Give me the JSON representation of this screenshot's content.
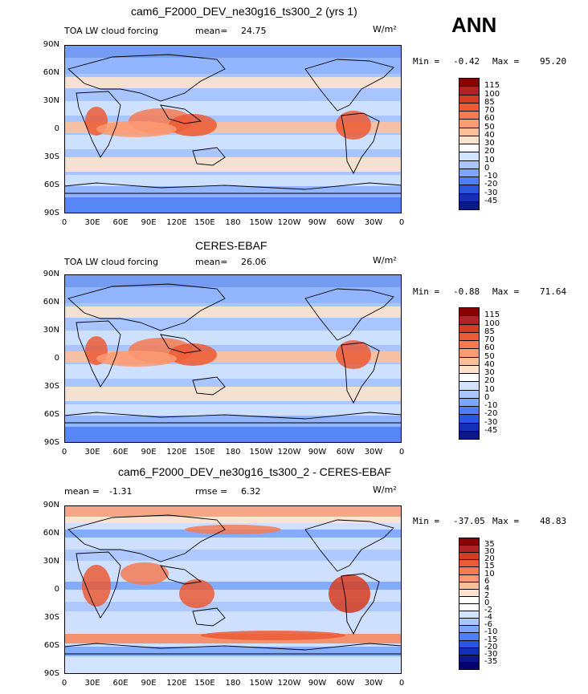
{
  "page_label": "ANN",
  "panels": [
    {
      "id": "model",
      "title": "cam6_F2000_DEV_ne30g16_ts300_2 (yrs 1)",
      "left_label": "TOA LW cloud forcing",
      "stat_label": "mean=",
      "stat_value": "24.75",
      "units": "W/m²",
      "min_label": "Min =",
      "min_value": "-0.42",
      "max_label": "Max =",
      "max_value": "95.20",
      "colorbar": {
        "labels": [
          "115",
          "100",
          "85",
          "70",
          "60",
          "50",
          "40",
          "30",
          "20",
          "10",
          "0",
          "-10",
          "-20",
          "-30",
          "-45"
        ],
        "colors": [
          "#8b0000",
          "#b22222",
          "#d63c1f",
          "#eb5b35",
          "#f57a52",
          "#fb9a73",
          "#fdbf9a",
          "#fde3cc",
          "#ffffff",
          "#d0e3ff",
          "#a8c6ff",
          "#7aa6ff",
          "#4e7ff5",
          "#2a55e0",
          "#1430b8",
          "#0a1a88"
        ]
      }
    },
    {
      "id": "obs",
      "title": "CERES-EBAF",
      "left_label": "TOA LW cloud forcing",
      "stat_label": "mean=",
      "stat_value": "26.06",
      "units": "W/m²",
      "min_label": "Min =",
      "min_value": "-0.88",
      "max_label": "Max =",
      "max_value": "71.64",
      "colorbar": {
        "labels": [
          "115",
          "100",
          "85",
          "70",
          "60",
          "50",
          "40",
          "30",
          "20",
          "10",
          "0",
          "-10",
          "-20",
          "-30",
          "-45"
        ],
        "colors": [
          "#8b0000",
          "#b22222",
          "#d63c1f",
          "#eb5b35",
          "#f57a52",
          "#fb9a73",
          "#fdbf9a",
          "#fde3cc",
          "#ffffff",
          "#d0e3ff",
          "#a8c6ff",
          "#7aa6ff",
          "#4e7ff5",
          "#2a55e0",
          "#1430b8",
          "#0a1a88"
        ]
      }
    },
    {
      "id": "diff",
      "title": "cam6_F2000_DEV_ne30g16_ts300_2 - CERES-EBAF",
      "left_label": "mean =",
      "left_value": "-1.31",
      "stat_label": "rmse =",
      "stat_value": "6.32",
      "units": "W/m²",
      "min_label": "Min =",
      "min_value": "-37.05",
      "max_label": "Max =",
      "max_value": "48.83",
      "colorbar": {
        "labels": [
          "35",
          "30",
          "20",
          "15",
          "10",
          "6",
          "4",
          "2",
          "0",
          "-2",
          "-4",
          "-6",
          "-10",
          "-15",
          "-20",
          "-30",
          "-35"
        ],
        "colors": [
          "#8b0000",
          "#b22222",
          "#d63c1f",
          "#eb5b35",
          "#f57a52",
          "#fb9a73",
          "#fdbf9a",
          "#fde3cc",
          "#ffffff",
          "#ffffff",
          "#d0e3ff",
          "#a8c6ff",
          "#7aa6ff",
          "#4e7ff5",
          "#2a55e0",
          "#1430b8",
          "#0a1a88",
          "#000070"
        ]
      }
    }
  ],
  "lat_ticks": [
    "90N",
    "60N",
    "30N",
    "0",
    "30S",
    "60S",
    "90S"
  ],
  "lon_ticks": [
    "0",
    "30E",
    "60E",
    "90E",
    "120E",
    "150E",
    "180",
    "150W",
    "120W",
    "90W",
    "60W",
    "30W",
    "0"
  ]
}
